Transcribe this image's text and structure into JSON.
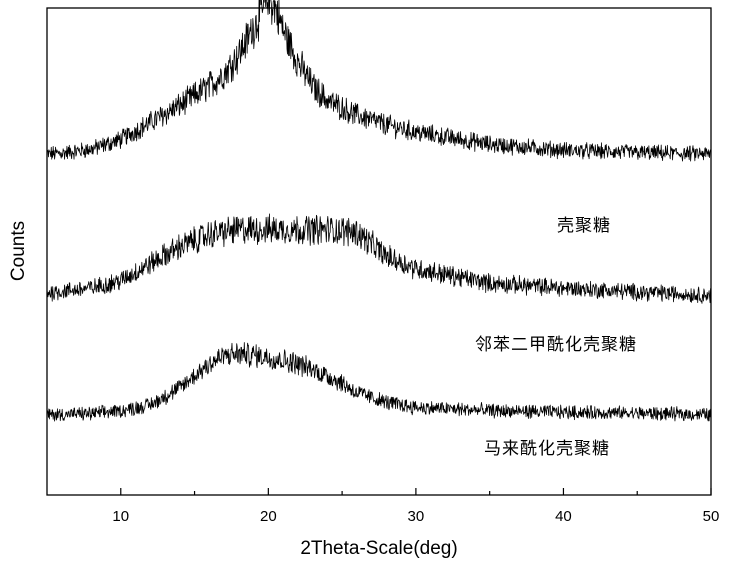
{
  "chart_data": {
    "type": "line",
    "xlabel": "2Theta-Scale(deg)",
    "ylabel": "Counts",
    "xlim": [
      5,
      50
    ],
    "ylim": [
      0,
      1
    ],
    "y_tick_labels": "none",
    "grid": false,
    "x_ticks": [
      10,
      20,
      30,
      40,
      50
    ],
    "line_color": "#000000",
    "series": [
      {
        "name": "壳聚糖",
        "baseline": 0.7,
        "noise": 0.014,
        "profile": [
          [
            5,
            0.0
          ],
          [
            6,
            0.002
          ],
          [
            8,
            0.01
          ],
          [
            10,
            0.03
          ],
          [
            12,
            0.065
          ],
          [
            14,
            0.1
          ],
          [
            15,
            0.12
          ],
          [
            16,
            0.14
          ],
          [
            17,
            0.165
          ],
          [
            18,
            0.205
          ],
          [
            19,
            0.26
          ],
          [
            20,
            0.32
          ],
          [
            20.5,
            0.3
          ],
          [
            21,
            0.255
          ],
          [
            22,
            0.19
          ],
          [
            23,
            0.14
          ],
          [
            24,
            0.11
          ],
          [
            26,
            0.08
          ],
          [
            28,
            0.06
          ],
          [
            30,
            0.045
          ],
          [
            35,
            0.02
          ],
          [
            40,
            0.008
          ],
          [
            45,
            0.003
          ],
          [
            50,
            0.0
          ]
        ]
      },
      {
        "name": "邻苯二甲酰化壳聚糖",
        "baseline": 0.405,
        "noise": 0.014,
        "profile": [
          [
            5,
            0.01
          ],
          [
            8,
            0.02
          ],
          [
            10,
            0.035
          ],
          [
            12,
            0.07
          ],
          [
            14,
            0.105
          ],
          [
            16,
            0.13
          ],
          [
            18,
            0.14
          ],
          [
            20,
            0.14
          ],
          [
            22,
            0.14
          ],
          [
            24,
            0.14
          ],
          [
            26,
            0.135
          ],
          [
            27,
            0.11
          ],
          [
            28,
            0.085
          ],
          [
            30,
            0.06
          ],
          [
            35,
            0.03
          ],
          [
            40,
            0.02
          ],
          [
            45,
            0.012
          ],
          [
            50,
            0.005
          ]
        ]
      },
      {
        "name": "马来酰化壳聚糖",
        "baseline": 0.165,
        "noise": 0.012,
        "profile": [
          [
            5,
            0.0
          ],
          [
            8,
            0.002
          ],
          [
            10,
            0.008
          ],
          [
            12,
            0.02
          ],
          [
            14,
            0.055
          ],
          [
            15,
            0.08
          ],
          [
            16,
            0.105
          ],
          [
            17,
            0.12
          ],
          [
            18,
            0.125
          ],
          [
            19,
            0.122
          ],
          [
            20,
            0.118
          ],
          [
            22,
            0.105
          ],
          [
            24,
            0.08
          ],
          [
            25,
            0.065
          ],
          [
            26,
            0.045
          ],
          [
            28,
            0.025
          ],
          [
            30,
            0.015
          ],
          [
            35,
            0.008
          ],
          [
            40,
            0.005
          ],
          [
            45,
            0.003
          ],
          [
            50,
            0.0
          ]
        ]
      }
    ]
  }
}
